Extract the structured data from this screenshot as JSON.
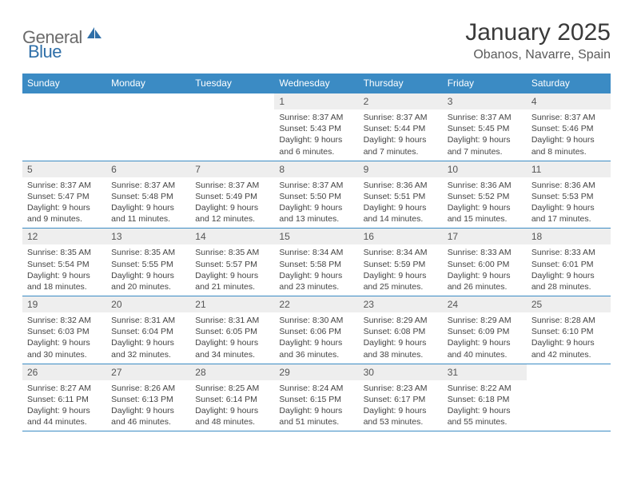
{
  "brand": {
    "part1": "General",
    "part2": "Blue"
  },
  "title": "January 2025",
  "location": "Obanos, Navarre, Spain",
  "colors": {
    "header_bg": "#3b8bc4",
    "header_text": "#ffffff",
    "daynum_bg": "#eeeeee",
    "border": "#3b8bc4",
    "logo_gray": "#6b6b6b",
    "logo_blue": "#2f6fa8"
  },
  "weekdays": [
    "Sunday",
    "Monday",
    "Tuesday",
    "Wednesday",
    "Thursday",
    "Friday",
    "Saturday"
  ],
  "weeks": [
    [
      null,
      null,
      null,
      {
        "n": "1",
        "sr": "8:37 AM",
        "ss": "5:43 PM",
        "dl": "9 hours and 6 minutes."
      },
      {
        "n": "2",
        "sr": "8:37 AM",
        "ss": "5:44 PM",
        "dl": "9 hours and 7 minutes."
      },
      {
        "n": "3",
        "sr": "8:37 AM",
        "ss": "5:45 PM",
        "dl": "9 hours and 7 minutes."
      },
      {
        "n": "4",
        "sr": "8:37 AM",
        "ss": "5:46 PM",
        "dl": "9 hours and 8 minutes."
      }
    ],
    [
      {
        "n": "5",
        "sr": "8:37 AM",
        "ss": "5:47 PM",
        "dl": "9 hours and 9 minutes."
      },
      {
        "n": "6",
        "sr": "8:37 AM",
        "ss": "5:48 PM",
        "dl": "9 hours and 11 minutes."
      },
      {
        "n": "7",
        "sr": "8:37 AM",
        "ss": "5:49 PM",
        "dl": "9 hours and 12 minutes."
      },
      {
        "n": "8",
        "sr": "8:37 AM",
        "ss": "5:50 PM",
        "dl": "9 hours and 13 minutes."
      },
      {
        "n": "9",
        "sr": "8:36 AM",
        "ss": "5:51 PM",
        "dl": "9 hours and 14 minutes."
      },
      {
        "n": "10",
        "sr": "8:36 AM",
        "ss": "5:52 PM",
        "dl": "9 hours and 15 minutes."
      },
      {
        "n": "11",
        "sr": "8:36 AM",
        "ss": "5:53 PM",
        "dl": "9 hours and 17 minutes."
      }
    ],
    [
      {
        "n": "12",
        "sr": "8:35 AM",
        "ss": "5:54 PM",
        "dl": "9 hours and 18 minutes."
      },
      {
        "n": "13",
        "sr": "8:35 AM",
        "ss": "5:55 PM",
        "dl": "9 hours and 20 minutes."
      },
      {
        "n": "14",
        "sr": "8:35 AM",
        "ss": "5:57 PM",
        "dl": "9 hours and 21 minutes."
      },
      {
        "n": "15",
        "sr": "8:34 AM",
        "ss": "5:58 PM",
        "dl": "9 hours and 23 minutes."
      },
      {
        "n": "16",
        "sr": "8:34 AM",
        "ss": "5:59 PM",
        "dl": "9 hours and 25 minutes."
      },
      {
        "n": "17",
        "sr": "8:33 AM",
        "ss": "6:00 PM",
        "dl": "9 hours and 26 minutes."
      },
      {
        "n": "18",
        "sr": "8:33 AM",
        "ss": "6:01 PM",
        "dl": "9 hours and 28 minutes."
      }
    ],
    [
      {
        "n": "19",
        "sr": "8:32 AM",
        "ss": "6:03 PM",
        "dl": "9 hours and 30 minutes."
      },
      {
        "n": "20",
        "sr": "8:31 AM",
        "ss": "6:04 PM",
        "dl": "9 hours and 32 minutes."
      },
      {
        "n": "21",
        "sr": "8:31 AM",
        "ss": "6:05 PM",
        "dl": "9 hours and 34 minutes."
      },
      {
        "n": "22",
        "sr": "8:30 AM",
        "ss": "6:06 PM",
        "dl": "9 hours and 36 minutes."
      },
      {
        "n": "23",
        "sr": "8:29 AM",
        "ss": "6:08 PM",
        "dl": "9 hours and 38 minutes."
      },
      {
        "n": "24",
        "sr": "8:29 AM",
        "ss": "6:09 PM",
        "dl": "9 hours and 40 minutes."
      },
      {
        "n": "25",
        "sr": "8:28 AM",
        "ss": "6:10 PM",
        "dl": "9 hours and 42 minutes."
      }
    ],
    [
      {
        "n": "26",
        "sr": "8:27 AM",
        "ss": "6:11 PM",
        "dl": "9 hours and 44 minutes."
      },
      {
        "n": "27",
        "sr": "8:26 AM",
        "ss": "6:13 PM",
        "dl": "9 hours and 46 minutes."
      },
      {
        "n": "28",
        "sr": "8:25 AM",
        "ss": "6:14 PM",
        "dl": "9 hours and 48 minutes."
      },
      {
        "n": "29",
        "sr": "8:24 AM",
        "ss": "6:15 PM",
        "dl": "9 hours and 51 minutes."
      },
      {
        "n": "30",
        "sr": "8:23 AM",
        "ss": "6:17 PM",
        "dl": "9 hours and 53 minutes."
      },
      {
        "n": "31",
        "sr": "8:22 AM",
        "ss": "6:18 PM",
        "dl": "9 hours and 55 minutes."
      },
      null
    ]
  ],
  "labels": {
    "sunrise": "Sunrise:",
    "sunset": "Sunset:",
    "daylight": "Daylight:"
  }
}
